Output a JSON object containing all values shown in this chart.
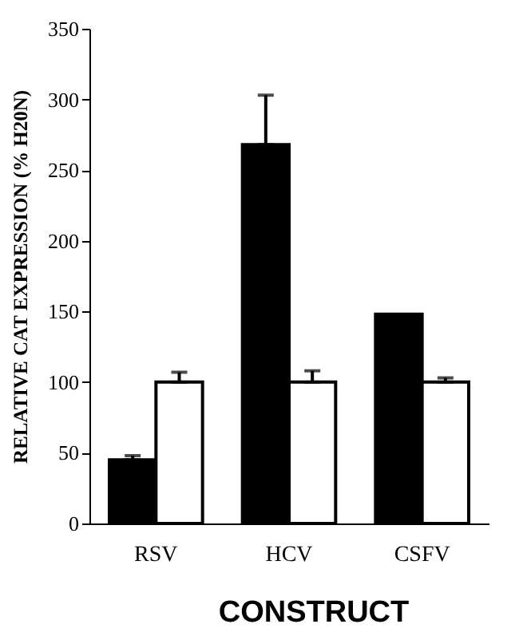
{
  "chart_data": {
    "type": "bar",
    "xlabel": "CONSTRUCT",
    "ylabel": "RELATIVE CAT EXPRESSION (% H20N)",
    "categories": [
      "RSV",
      "HCV",
      "CSFV"
    ],
    "series": [
      {
        "color": "#000000",
        "values": [
          45,
          268,
          148
        ],
        "errors": [
          [
            45,
            48
          ],
          [
            268,
            303
          ],
          null
        ]
      },
      {
        "color": "#ffffff",
        "values": [
          100,
          100,
          100
        ],
        "errors": [
          [
            100,
            107
          ],
          [
            100,
            108
          ],
          [
            100,
            103
          ]
        ]
      }
    ],
    "ylim": [
      0,
      350
    ],
    "yticks": [
      0,
      50,
      100,
      150,
      200,
      250,
      300,
      350
    ],
    "grid": false,
    "legend": false
  }
}
